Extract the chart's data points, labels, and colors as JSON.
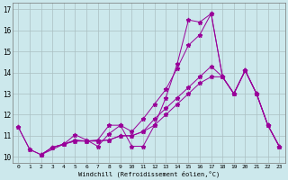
{
  "xlabel": "Windchill (Refroidissement éolien,°C)",
  "background_color": "#cce8ec",
  "grid_color": "#aabfc2",
  "line_color": "#990099",
  "xlim": [
    -0.5,
    23.5
  ],
  "ylim": [
    9.7,
    17.3
  ],
  "xticks": [
    0,
    1,
    2,
    3,
    4,
    5,
    6,
    7,
    8,
    9,
    10,
    11,
    12,
    13,
    14,
    15,
    16,
    17,
    18,
    19,
    20,
    21,
    22,
    23
  ],
  "yticks": [
    10,
    11,
    12,
    13,
    14,
    15,
    16,
    17
  ],
  "lines": [
    {
      "x": [
        0,
        1,
        2,
        3,
        4,
        5,
        6,
        7,
        8,
        9,
        10,
        11,
        12,
        13,
        14,
        15,
        16,
        17,
        18,
        19,
        20,
        21,
        22,
        23
      ],
      "y": [
        11.4,
        10.35,
        10.1,
        10.45,
        10.6,
        11.05,
        10.8,
        10.5,
        11.1,
        11.5,
        10.5,
        10.5,
        11.5,
        12.8,
        14.4,
        16.5,
        16.4,
        16.8,
        13.8,
        13.0,
        14.1,
        13.0,
        11.5,
        10.5
      ]
    },
    {
      "x": [
        0,
        1,
        2,
        3,
        4,
        5,
        6,
        7,
        8,
        9,
        10,
        11,
        12,
        13,
        14,
        15,
        16,
        17,
        18,
        19,
        20,
        21,
        22,
        23
      ],
      "y": [
        11.4,
        10.35,
        10.1,
        10.45,
        10.6,
        10.8,
        10.75,
        10.8,
        11.5,
        11.5,
        11.2,
        11.8,
        12.5,
        13.2,
        14.2,
        15.3,
        15.8,
        16.8,
        13.8,
        13.0,
        14.1,
        13.0,
        11.5,
        10.5
      ]
    },
    {
      "x": [
        2,
        3,
        4,
        5,
        6,
        7,
        8,
        9,
        10,
        11,
        12,
        13,
        14,
        15,
        16,
        17,
        18,
        19,
        20,
        21,
        22,
        23
      ],
      "y": [
        10.1,
        10.45,
        10.6,
        10.75,
        10.75,
        10.75,
        10.8,
        11.0,
        11.0,
        11.2,
        11.5,
        12.0,
        12.5,
        13.0,
        13.5,
        13.8,
        13.8,
        13.0,
        14.1,
        13.0,
        11.5,
        10.5
      ]
    },
    {
      "x": [
        2,
        4,
        5,
        6,
        7,
        8,
        9,
        10,
        11,
        12,
        13,
        14,
        15,
        16,
        17,
        18,
        19,
        20,
        21,
        22,
        23
      ],
      "y": [
        10.1,
        10.6,
        10.75,
        10.75,
        10.75,
        10.8,
        11.0,
        11.0,
        11.2,
        11.8,
        12.3,
        12.8,
        13.3,
        13.8,
        14.3,
        13.8,
        13.0,
        14.1,
        13.0,
        11.5,
        10.5
      ]
    }
  ]
}
